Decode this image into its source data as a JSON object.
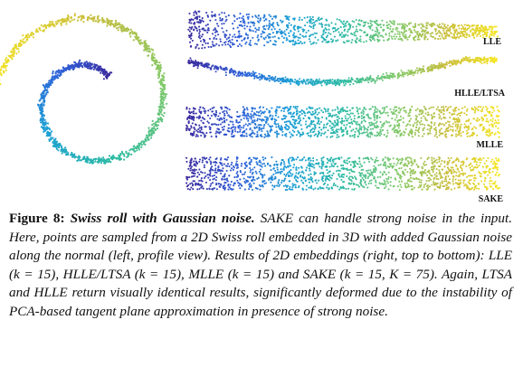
{
  "figure": {
    "panels": [
      {
        "id": "lle",
        "label": "LLE",
        "shape": "tapered-band"
      },
      {
        "id": "hlle-ltsa",
        "label": "HLLE/LTSA",
        "shape": "thin-arc"
      },
      {
        "id": "mlle",
        "label": "MLLE",
        "shape": "band"
      },
      {
        "id": "sake",
        "label": "SAKE",
        "shape": "band"
      }
    ],
    "colormap": [
      "#3b2a9e",
      "#2f5fd8",
      "#1c9fd6",
      "#2dbba4",
      "#7ec96a",
      "#c9be3c",
      "#f6e51e"
    ]
  },
  "caption": {
    "label": "Figure 8:",
    "title": "Swiss roll with Gaussian noise.",
    "body": "SAKE can handle strong noise in the input. Here, points are sampled from a 2D Swiss roll embedded in 3D with added Gaussian noise along the normal (left, profile view). Results of 2D embeddings (right, top to bottom): LLE (k = 15), HLLE/LTSA (k = 15), MLLE (k = 15) and SAKE (k = 15, K = 75). Again, LTSA and HLLE return visually identical results, significantly deformed due to the instability of PCA-based tangent plane approximation in presence of strong noise."
  }
}
